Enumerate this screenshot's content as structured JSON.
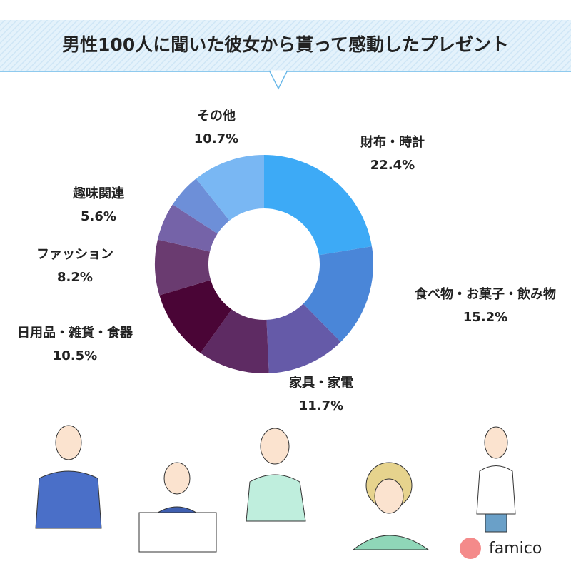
{
  "chart_data": {
    "type": "donut",
    "title": "男性100人に聞いた彼女から貰って感動したプレゼント",
    "categories": [
      "財布・時計",
      "食べ物・お菓子・飲み物",
      "家具・家電",
      null,
      "日用品・雑貨・食器",
      "ファッション",
      "趣味関連",
      null,
      "その他"
    ],
    "values": [
      22.4,
      15.2,
      11.7,
      10.6,
      10.5,
      8.2,
      5.6,
      5.1,
      10.7
    ],
    "value_labels": [
      "22.4%",
      "15.2%",
      "11.7%",
      null,
      "10.5%",
      "8.2%",
      "5.6%",
      null,
      "10.7%"
    ],
    "colors": [
      "#3daaf6",
      "#4a86d8",
      "#655aa8",
      "#5e2b63",
      "#4a0536",
      "#6a3b70",
      "#7563a8",
      "#6d8fd8",
      "#79b7f3"
    ]
  },
  "brand": "famico"
}
